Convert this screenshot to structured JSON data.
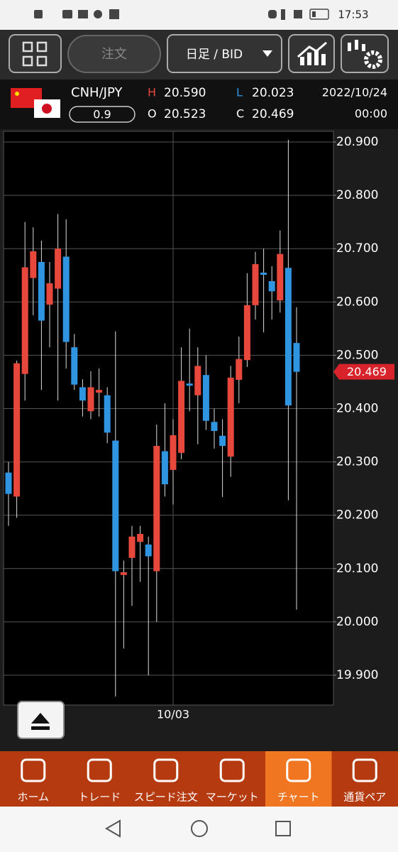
{
  "ui": {
    "status_time": "17:53",
    "order_button": "注文",
    "period_select": "日足 / BID",
    "pair": "CNH/JPY",
    "spread": "0.9",
    "high_label": "H",
    "high": "20.590",
    "low_label": "L",
    "low": "20.023",
    "open_label": "O",
    "open": "20.523",
    "close_label": "C",
    "close": "20.469",
    "date": "2022/10/24",
    "time": "00:00",
    "nav": [
      "ホーム",
      "トレード",
      "スピード注文",
      "マーケット",
      "チャート",
      "通貨ペア"
    ]
  },
  "chart_data": {
    "type": "candlestick",
    "categories": [
      null,
      null,
      null,
      null,
      null,
      null,
      null,
      null,
      null,
      null,
      null,
      null,
      null,
      null,
      null,
      null,
      null,
      null,
      null,
      null,
      "10/03",
      null,
      null,
      null,
      null,
      null,
      null,
      null,
      null,
      null,
      null,
      null,
      null,
      null,
      null,
      null
    ],
    "open": [
      20.28,
      20.235,
      20.465,
      20.645,
      20.675,
      20.595,
      20.625,
      20.685,
      20.515,
      20.44,
      20.395,
      20.43,
      20.425,
      20.34,
      20.088,
      20.12,
      20.15,
      20.145,
      20.095,
      20.32,
      20.285,
      20.317,
      20.447,
      20.425,
      20.463,
      20.375,
      20.349,
      20.31,
      20.454,
      20.491,
      20.594,
      20.655,
      20.639,
      20.603,
      20.664,
      20.523
    ],
    "high": [
      20.3,
      20.49,
      20.75,
      20.74,
      20.715,
      20.675,
      20.765,
      20.755,
      20.54,
      20.455,
      20.47,
      20.475,
      20.44,
      20.545,
      20.115,
      20.18,
      20.18,
      20.16,
      20.37,
      20.41,
      20.38,
      20.515,
      20.55,
      20.515,
      20.5,
      20.4,
      20.38,
      20.48,
      20.535,
      20.654,
      20.694,
      20.7,
      20.667,
      20.734,
      20.904,
      20.59
    ],
    "low": [
      20.18,
      20.195,
      20.415,
      20.575,
      20.435,
      20.515,
      20.415,
      20.475,
      20.435,
      20.385,
      20.38,
      20.385,
      20.335,
      19.86,
      19.95,
      20.03,
      20.075,
      19.9,
      20.0,
      20.235,
      20.22,
      20.305,
      20.395,
      20.333,
      20.36,
      20.325,
      20.234,
      20.272,
      20.41,
      20.478,
      20.567,
      20.543,
      20.567,
      20.58,
      20.228,
      20.023
    ],
    "close": [
      20.24,
      20.485,
      20.665,
      20.695,
      20.565,
      20.635,
      20.7,
      20.525,
      20.445,
      20.415,
      20.44,
      20.435,
      20.355,
      20.095,
      20.093,
      20.16,
      20.165,
      20.123,
      20.33,
      20.258,
      20.35,
      20.452,
      20.443,
      20.48,
      20.377,
      20.358,
      20.33,
      20.458,
      20.493,
      20.594,
      20.671,
      20.651,
      20.62,
      20.69,
      20.406,
      20.469
    ],
    "up_color": "#e8483c",
    "down_color": "#2f95e0",
    "last_price": 20.469,
    "last_price_color": "#d8222c",
    "ylim": [
      19.844,
      20.92
    ],
    "yticks": [
      {
        "value": 19.9,
        "label": "19.900"
      },
      {
        "value": 20.0,
        "label": "20.000"
      },
      {
        "value": 20.1,
        "label": "20.100"
      },
      {
        "value": 20.2,
        "label": "20.200"
      },
      {
        "value": 20.3,
        "label": "20.300"
      },
      {
        "value": 20.4,
        "label": "20.400"
      },
      {
        "value": 20.5,
        "label": "20.500"
      },
      {
        "value": 20.6,
        "label": "20.600"
      },
      {
        "value": 20.7,
        "label": "20.700"
      },
      {
        "value": 20.8,
        "label": "20.800"
      },
      {
        "value": 20.9,
        "label": "20.900"
      }
    ],
    "grid": true
  }
}
